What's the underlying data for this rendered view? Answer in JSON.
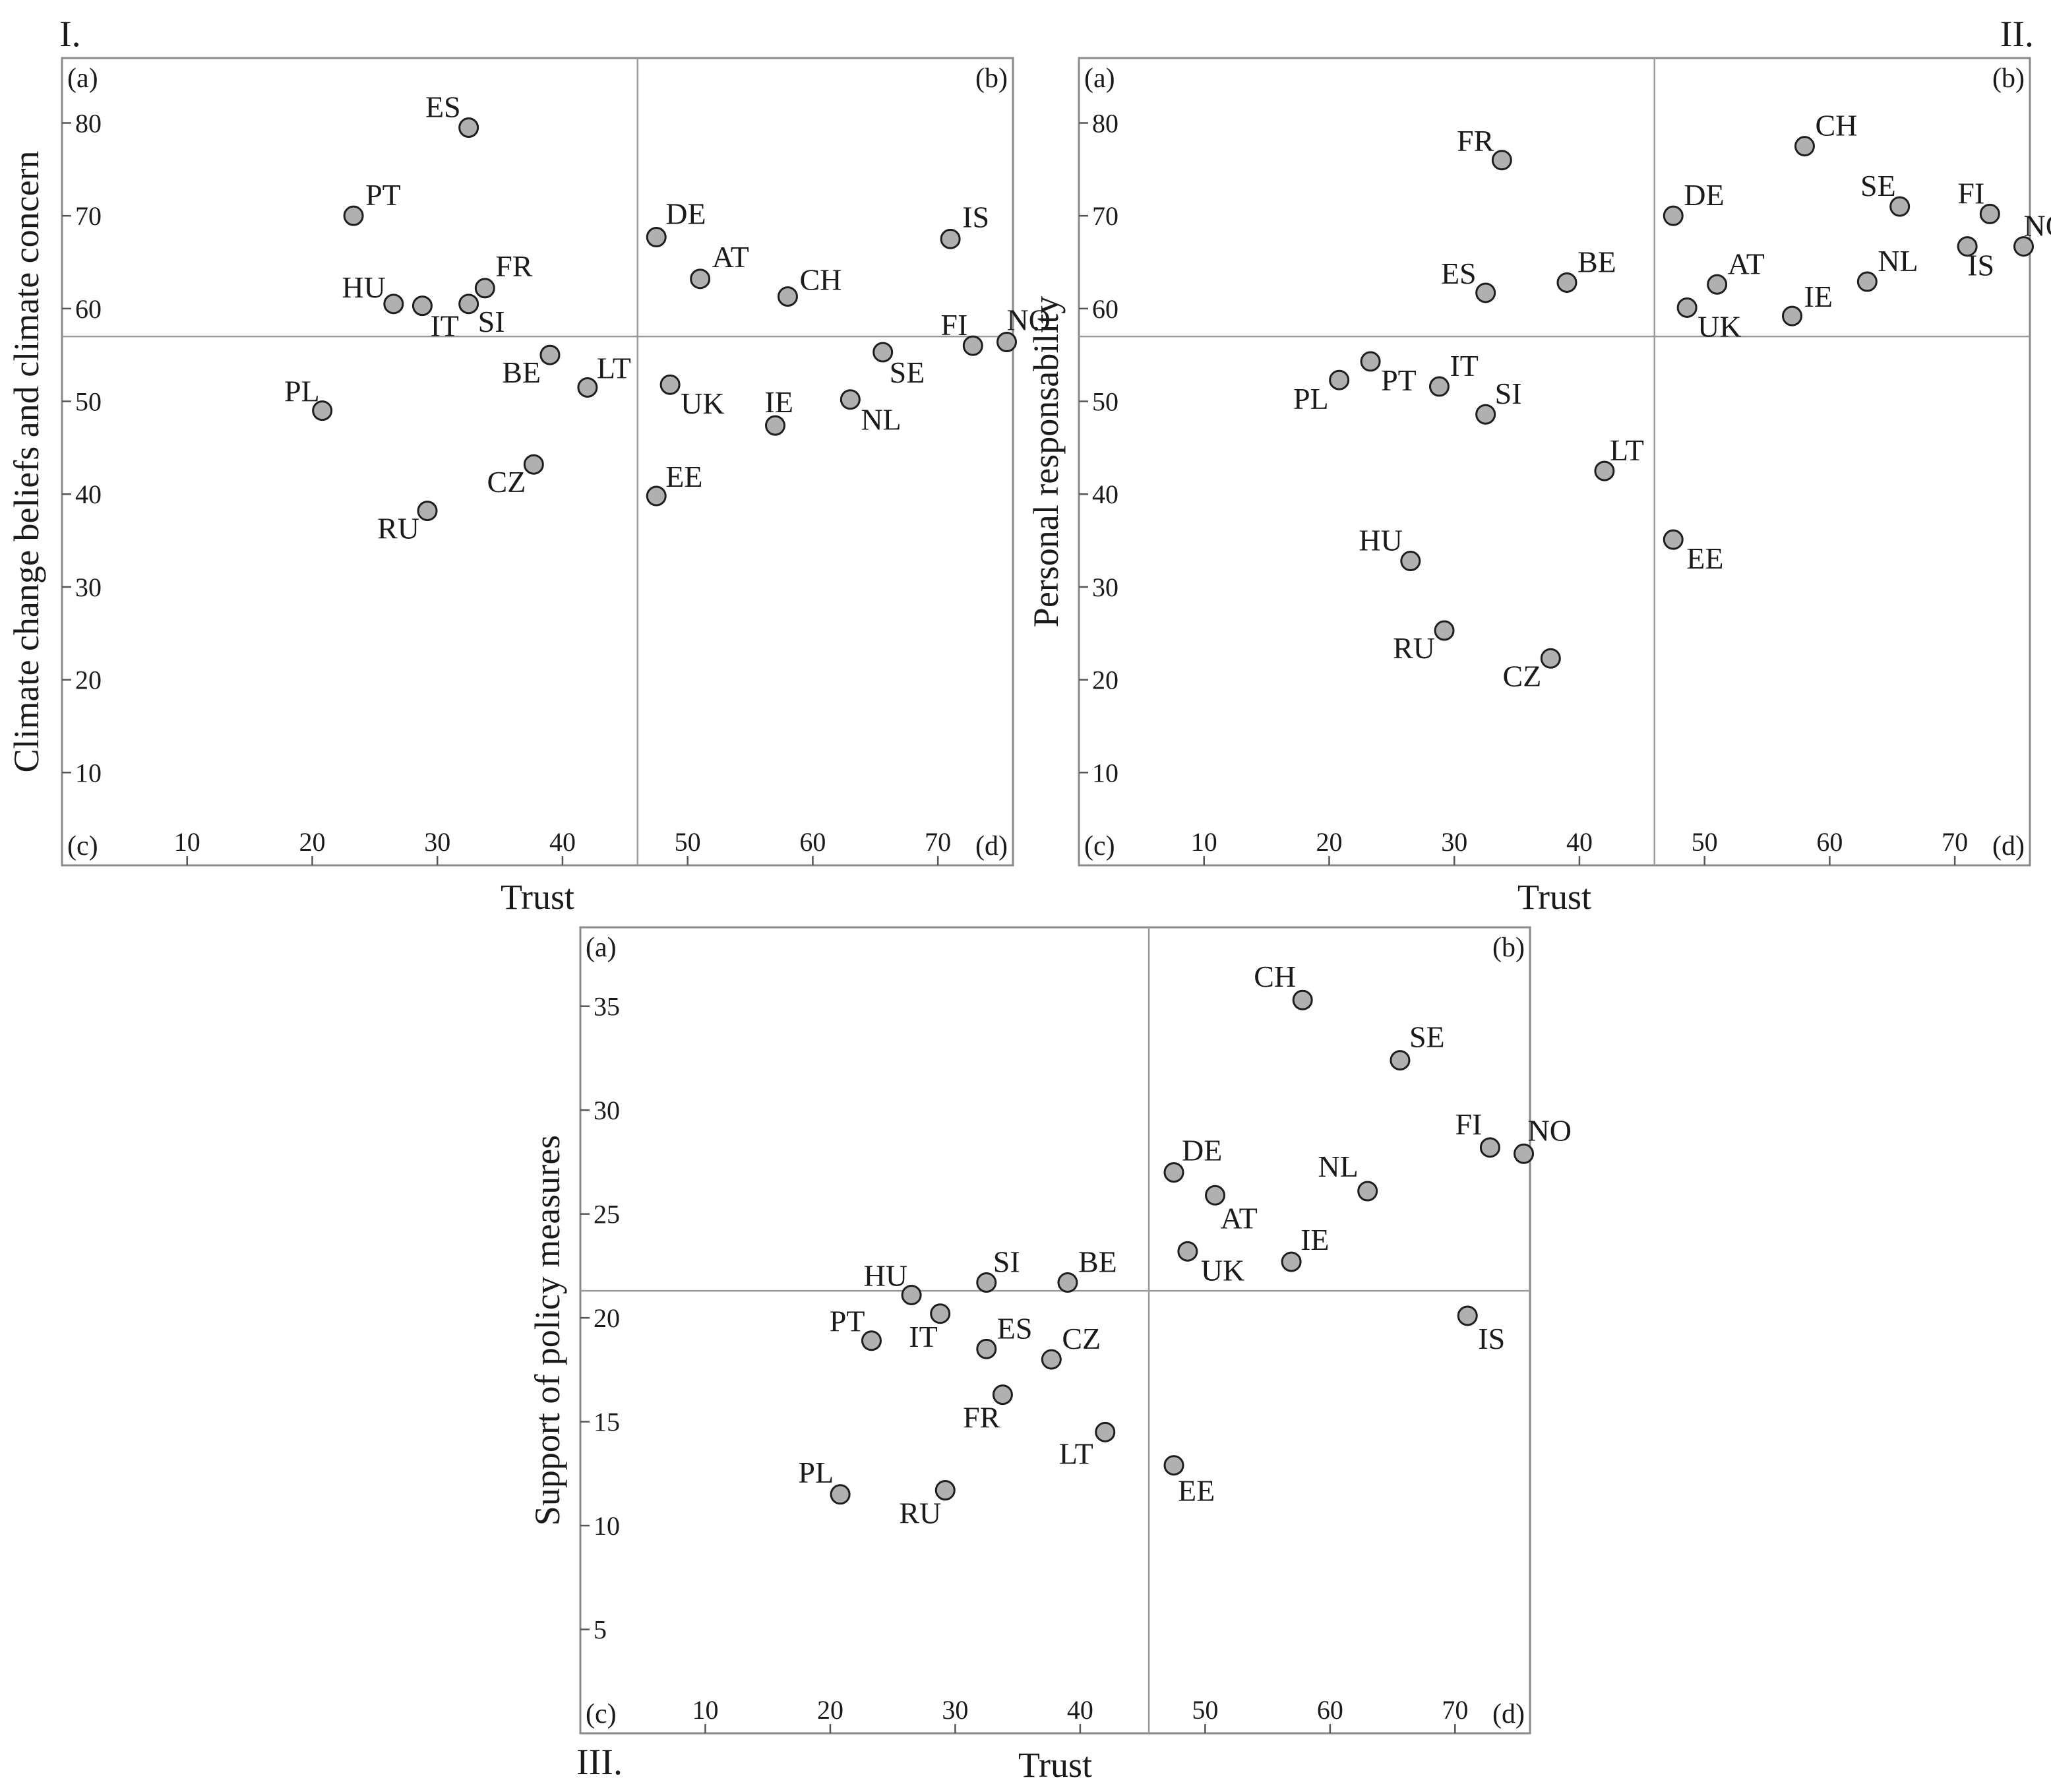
{
  "chart_data": [
    {
      "type": "scatter",
      "panel": "I.",
      "xlabel": "Trust",
      "ylabel": "Climate change beliefs and climate concern",
      "xlim": [
        0,
        76
      ],
      "ylim": [
        0,
        87
      ],
      "xticks": [
        10,
        20,
        30,
        40,
        50,
        60,
        70
      ],
      "yticks": [
        10,
        20,
        30,
        40,
        50,
        60,
        70,
        80
      ],
      "divider": {
        "x": 46,
        "y": 57
      },
      "quadrant_labels": [
        "(a)",
        "(b)",
        "(c)",
        "(d)"
      ],
      "points": [
        {
          "label": "ES",
          "x": 32.5,
          "y": 79.5
        },
        {
          "label": "PT",
          "x": 23.3,
          "y": 70
        },
        {
          "label": "HU",
          "x": 26.5,
          "y": 60.5
        },
        {
          "label": "IT",
          "x": 28.8,
          "y": 60.3
        },
        {
          "label": "SI",
          "x": 32.5,
          "y": 60.5
        },
        {
          "label": "FR",
          "x": 33.8,
          "y": 62.2
        },
        {
          "label": "PL",
          "x": 20.8,
          "y": 49
        },
        {
          "label": "BE",
          "x": 39,
          "y": 55
        },
        {
          "label": "LT",
          "x": 42,
          "y": 51.5
        },
        {
          "label": "CZ",
          "x": 37.7,
          "y": 43.2
        },
        {
          "label": "RU",
          "x": 29.2,
          "y": 38.2
        },
        {
          "label": "DE",
          "x": 47.5,
          "y": 67.7
        },
        {
          "label": "AT",
          "x": 51,
          "y": 63.2
        },
        {
          "label": "CH",
          "x": 58,
          "y": 61.3
        },
        {
          "label": "IS",
          "x": 71,
          "y": 67.5
        },
        {
          "label": "UK",
          "x": 48.6,
          "y": 51.8
        },
        {
          "label": "IE",
          "x": 57,
          "y": 47.4
        },
        {
          "label": "SE",
          "x": 65.6,
          "y": 55.3
        },
        {
          "label": "NL",
          "x": 63,
          "y": 50.2
        },
        {
          "label": "FI",
          "x": 72.8,
          "y": 56
        },
        {
          "label": "NO",
          "x": 75.5,
          "y": 56.4
        },
        {
          "label": "EE",
          "x": 47.5,
          "y": 39.8
        }
      ]
    },
    {
      "type": "scatter",
      "panel": "II.",
      "xlabel": "Trust",
      "ylabel": "Personal responsability",
      "xlim": [
        0,
        76
      ],
      "ylim": [
        0,
        87
      ],
      "xticks": [
        10,
        20,
        30,
        40,
        50,
        60,
        70
      ],
      "yticks": [
        10,
        20,
        30,
        40,
        50,
        60,
        70,
        80
      ],
      "divider": {
        "x": 46,
        "y": 57
      },
      "quadrant_labels": [
        "(a)",
        "(b)",
        "(c)",
        "(d)"
      ],
      "points": [
        {
          "label": "FR",
          "x": 33.8,
          "y": 76
        },
        {
          "label": "ES",
          "x": 32.5,
          "y": 61.7
        },
        {
          "label": "BE",
          "x": 39,
          "y": 62.8
        },
        {
          "label": "DE",
          "x": 47.5,
          "y": 70
        },
        {
          "label": "CH",
          "x": 58,
          "y": 77.5
        },
        {
          "label": "SE",
          "x": 65.6,
          "y": 71
        },
        {
          "label": "FI",
          "x": 72.8,
          "y": 70.2
        },
        {
          "label": "NO",
          "x": 75.5,
          "y": 66.7
        },
        {
          "label": "AT",
          "x": 51,
          "y": 62.6
        },
        {
          "label": "NL",
          "x": 63,
          "y": 62.9
        },
        {
          "label": "IS",
          "x": 71,
          "y": 66.7
        },
        {
          "label": "UK",
          "x": 48.6,
          "y": 60.1
        },
        {
          "label": "IE",
          "x": 57,
          "y": 59.2
        },
        {
          "label": "PL",
          "x": 20.8,
          "y": 52.3
        },
        {
          "label": "PT",
          "x": 23.3,
          "y": 54.3
        },
        {
          "label": "IT",
          "x": 28.8,
          "y": 51.6
        },
        {
          "label": "SI",
          "x": 32.5,
          "y": 48.6
        },
        {
          "label": "LT",
          "x": 42,
          "y": 42.5
        },
        {
          "label": "HU",
          "x": 26.5,
          "y": 32.8
        },
        {
          "label": "EE",
          "x": 47.5,
          "y": 35.1
        },
        {
          "label": "RU",
          "x": 29.2,
          "y": 25.3
        },
        {
          "label": "CZ",
          "x": 37.7,
          "y": 22.3
        }
      ]
    },
    {
      "type": "scatter",
      "panel": "III.",
      "xlabel": "Trust",
      "ylabel": "Support of policy measures",
      "xlim": [
        0,
        76
      ],
      "ylim": [
        0,
        38.8
      ],
      "xticks": [
        10,
        20,
        30,
        40,
        50,
        60,
        70
      ],
      "yticks": [
        5,
        10,
        15,
        20,
        25,
        30,
        35
      ],
      "divider": {
        "x": 45.5,
        "y": 21.3
      },
      "quadrant_labels": [
        "(a)",
        "(b)",
        "(c)",
        "(d)"
      ],
      "points": [
        {
          "label": "CH",
          "x": 57.8,
          "y": 35.3
        },
        {
          "label": "SE",
          "x": 65.6,
          "y": 32.4
        },
        {
          "label": "FI",
          "x": 72.8,
          "y": 28.2
        },
        {
          "label": "NO",
          "x": 75.5,
          "y": 27.9
        },
        {
          "label": "DE",
          "x": 47.5,
          "y": 27
        },
        {
          "label": "AT",
          "x": 50.8,
          "y": 25.9
        },
        {
          "label": "NL",
          "x": 63,
          "y": 26.1
        },
        {
          "label": "UK",
          "x": 48.6,
          "y": 23.2
        },
        {
          "label": "IE",
          "x": 56.9,
          "y": 22.7
        },
        {
          "label": "IS",
          "x": 71,
          "y": 20.1
        },
        {
          "label": "HU",
          "x": 26.5,
          "y": 21.1
        },
        {
          "label": "SI",
          "x": 32.5,
          "y": 21.7
        },
        {
          "label": "BE",
          "x": 39,
          "y": 21.7
        },
        {
          "label": "IT",
          "x": 28.8,
          "y": 20.2
        },
        {
          "label": "PT",
          "x": 23.3,
          "y": 18.9
        },
        {
          "label": "ES",
          "x": 32.5,
          "y": 18.5
        },
        {
          "label": "CZ",
          "x": 37.7,
          "y": 18
        },
        {
          "label": "FR",
          "x": 33.8,
          "y": 16.3
        },
        {
          "label": "LT",
          "x": 42,
          "y": 14.5
        },
        {
          "label": "PL",
          "x": 20.8,
          "y": 11.5
        },
        {
          "label": "RU",
          "x": 29.2,
          "y": 11.7
        },
        {
          "label": "EE",
          "x": 47.5,
          "y": 12.9
        }
      ]
    }
  ]
}
